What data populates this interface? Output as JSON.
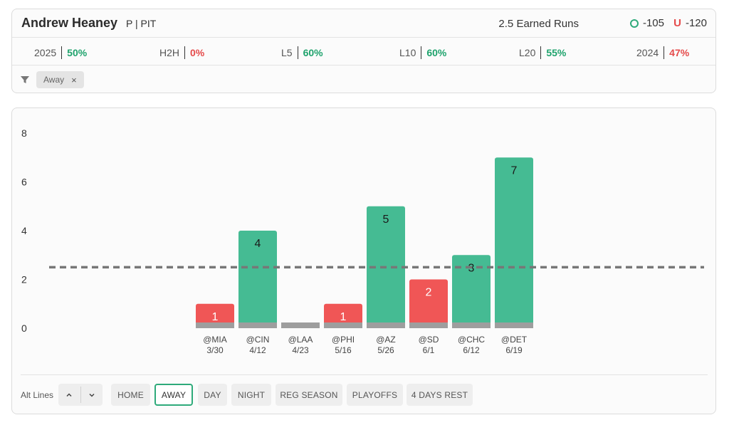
{
  "player": {
    "name": "Andrew Heaney",
    "meta": "P | PIT"
  },
  "market": {
    "label": "2.5 Earned Runs",
    "over": "-105",
    "under": "-120"
  },
  "stats": [
    {
      "label": "2025",
      "value": "50%",
      "color": "green"
    },
    {
      "label": "H2H",
      "value": "0%",
      "color": "red"
    },
    {
      "label": "L5",
      "value": "60%",
      "color": "green"
    },
    {
      "label": "L10",
      "value": "60%",
      "color": "green"
    },
    {
      "label": "L20",
      "value": "55%",
      "color": "green"
    },
    {
      "label": "2024",
      "value": "47%",
      "color": "red"
    }
  ],
  "active_filter": {
    "label": "Away",
    "close": "×"
  },
  "controls": {
    "alt_lines_label": "Alt Lines",
    "buttons": [
      "HOME",
      "AWAY",
      "DAY",
      "NIGHT",
      "REG SEASON",
      "PLAYOFFS",
      "4 DAYS REST"
    ],
    "active": "AWAY"
  },
  "colors": {
    "over": "#45bb93",
    "under": "#f05656",
    "push": "#9e9e9e",
    "line": "#777777"
  },
  "chart_data": {
    "type": "bar",
    "categories": [
      "@MIA",
      "@CIN",
      "@LAA",
      "@PHI",
      "@AZ",
      "@SD",
      "@CHC",
      "@DET"
    ],
    "dates": [
      "3/30",
      "4/12",
      "4/23",
      "5/16",
      "5/26",
      "6/1",
      "6/12",
      "6/19"
    ],
    "values": [
      1,
      4,
      0,
      1,
      5,
      2,
      3,
      7
    ],
    "line": 2.5,
    "ylim": [
      0,
      8
    ],
    "yticks": [
      0,
      2,
      4,
      6,
      8
    ],
    "grid": false
  }
}
